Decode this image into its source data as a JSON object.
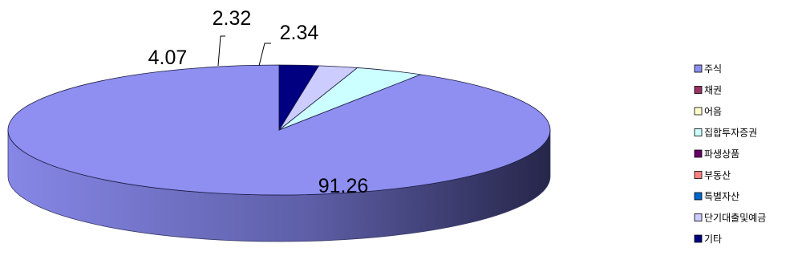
{
  "chart_data": {
    "type": "pie",
    "style": "3d",
    "title": "",
    "categories": [
      "주식",
      "채권",
      "어음",
      "집합투자증권",
      "파생상품",
      "부동산",
      "특별자산",
      "단기대출및예금",
      "기타"
    ],
    "values": [
      91.26,
      0,
      0,
      4.07,
      0,
      0,
      0,
      2.32,
      2.34
    ],
    "data_labels": [
      "91.26",
      "",
      "",
      "4.07",
      "",
      "",
      "",
      "2.32",
      "2.34"
    ],
    "colors": [
      "#8E8FF0",
      "#993366",
      "#FFFFCC",
      "#CCFFFF",
      "#660066",
      "#FF8080",
      "#0066CC",
      "#CCCCFF",
      "#000080"
    ],
    "legend_position": "right"
  }
}
